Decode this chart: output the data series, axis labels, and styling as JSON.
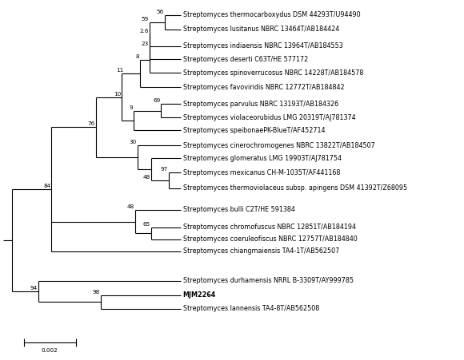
{
  "background": "#ffffff",
  "taxa": [
    "Streptomyces thermocarboxydus DSM 44293T/U94490",
    "Streptomyces lusitanus NBRC 13464T/AB184424",
    "Streptomyces indiaensis NBRC 13964T/AB184553",
    "Streptomyces deserti C63T/HE 577172",
    "Streptomyces spinoverrucosus NBRC 14228T/AB184578",
    "Streptomyces favoviridis NBRC 12772T/AB184842",
    "Streptomyces parvulus NBRC 13193T/AB184326",
    "Streptomyces violaceorubidus LMG 20319T/AJ781374",
    "Streptomyces speibonaePK-BlueT/AF452714",
    "Streptomyces cinerochromogenes NBRC 13822T/AB184507",
    "Streptomyces glomeratus LMG 19903T/AJ781754",
    "Streptomyces mexicanus CH-M-1035T/AF441168",
    "Streptomyces thermoviolaceus subsp. apingens DSM 41392T/Z68095",
    "Streptomyces bulli C2T/HE 591384",
    "Streptomyces chromofuscus NBRC 12851T/AB184194",
    "Streptomyces coeruleofiscus NBRC 12757T/AB184840",
    "Streptomyces chiangmaiensis TA4-1T/AB562507",
    "Streptomyces durhamensis NRRL B-3309T/AY999785",
    "MJM2264",
    "Streptomyces lannensis TA4-8T/AB562508"
  ],
  "bold_taxon": "MJM2264",
  "label_fontsize": 5.8,
  "bootstrap_fontsize": 5.2,
  "scale_label": "0.002"
}
